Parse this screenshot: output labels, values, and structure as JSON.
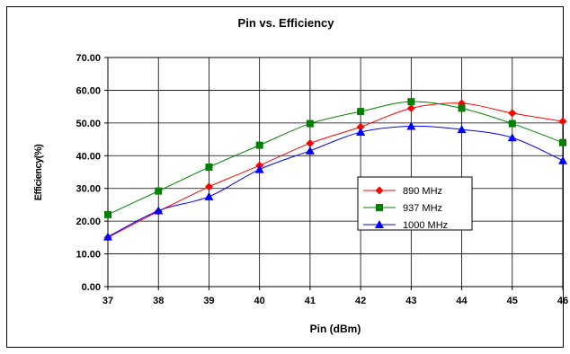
{
  "chart_data": {
    "type": "line",
    "title": "Pin vs. Efficiency",
    "xlabel": "Pin (dBm)",
    "ylabel": "Efficiency(%)",
    "x": [
      37,
      38,
      39,
      40,
      41,
      42,
      43,
      44,
      45,
      46
    ],
    "xlim": [
      37,
      46
    ],
    "ylim": [
      0,
      70
    ],
    "ytick_step": 10,
    "ytick_labels": [
      "0.00",
      "10.00",
      "20.00",
      "30.00",
      "40.00",
      "50.00",
      "60.00",
      "70.00"
    ],
    "xtick_labels": [
      "37",
      "38",
      "39",
      "40",
      "41",
      "42",
      "43",
      "44",
      "45",
      "46"
    ],
    "grid": true,
    "legend_position": "center-right",
    "series": [
      {
        "name": "890 MHz",
        "color": "#ff0000",
        "marker": "diamond",
        "values": [
          15.0,
          23.0,
          30.5,
          37.0,
          43.8,
          48.8,
          54.5,
          56.0,
          53.0,
          50.5
        ]
      },
      {
        "name": "937 MHz",
        "color": "#008000",
        "marker": "square",
        "values": [
          22.0,
          29.2,
          36.5,
          43.2,
          49.8,
          53.5,
          56.5,
          54.5,
          49.8,
          44.0
        ]
      },
      {
        "name": "1000 MHz",
        "color": "#0000ff",
        "marker": "triangle",
        "values": [
          15.2,
          23.2,
          27.5,
          35.8,
          41.5,
          47.2,
          49.0,
          48.0,
          45.5,
          38.5
        ]
      }
    ]
  }
}
